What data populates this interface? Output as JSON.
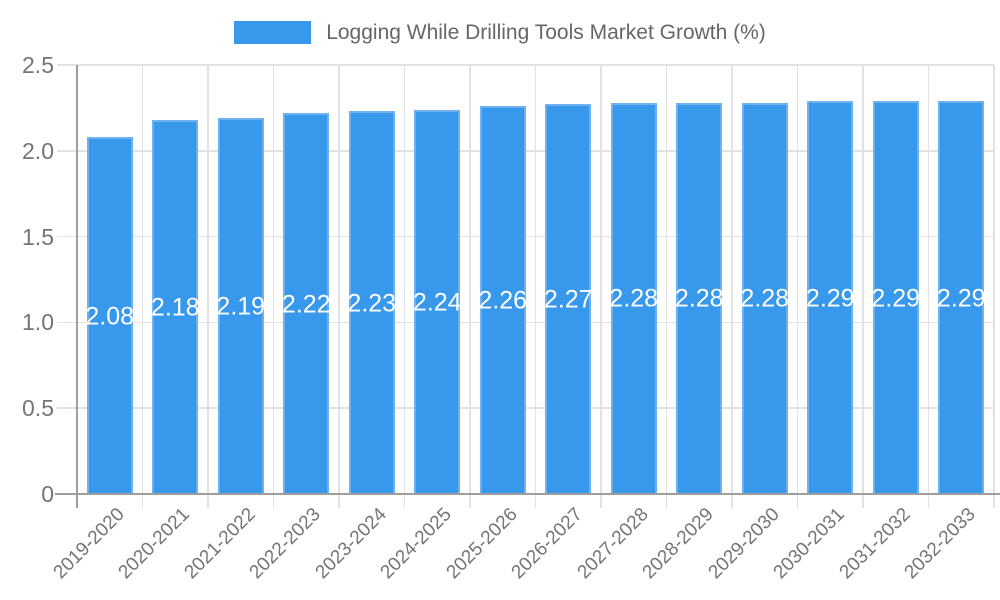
{
  "chart_data": {
    "type": "bar",
    "legend": "Logging While Drilling Tools Market Growth (%)",
    "legend_position": "top",
    "categories": [
      "2019-2020",
      "2020-2021",
      "2021-2022",
      "2022-2023",
      "2023-2024",
      "2024-2025",
      "2025-2026",
      "2026-2027",
      "2027-2028",
      "2028-2029",
      "2029-2030",
      "2030-2031",
      "2031-2032",
      "2032-2033"
    ],
    "values": [
      2.08,
      2.18,
      2.19,
      2.22,
      2.23,
      2.24,
      2.26,
      2.27,
      2.28,
      2.28,
      2.28,
      2.29,
      2.29,
      2.29
    ],
    "value_labels": [
      "2.08",
      "2.18",
      "2.19",
      "2.22",
      "2.23",
      "2.24",
      "2.26",
      "2.27",
      "2.28",
      "2.28",
      "2.28",
      "2.29",
      "2.29",
      "2.29"
    ],
    "xlabel": "",
    "ylabel": "",
    "ylim": [
      0,
      2.5
    ],
    "ytick_values": [
      0,
      0.5,
      1.0,
      1.5,
      2.0,
      2.5
    ],
    "ytick_labels": [
      "0",
      "0.5",
      "1.0",
      "1.5",
      "2.0",
      "2.5"
    ],
    "grid": true,
    "colors": {
      "bar": "#3898EC",
      "bar_border": "#6FB0EF",
      "grid": "#E2E2E2",
      "axis": "#9E9E9E",
      "tick_label": "#757575",
      "legend_text": "#666666",
      "value_label": "#FFFFFF",
      "background": "#FFFFFF"
    }
  }
}
